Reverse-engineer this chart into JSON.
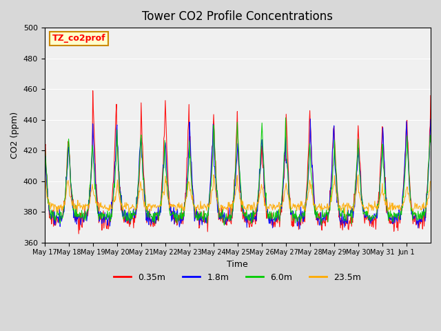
{
  "title": "Tower CO2 Profile Concentrations",
  "xlabel": "Time",
  "ylabel": "CO2 (ppm)",
  "label_text": "TZ_co2prof",
  "ylim": [
    360,
    500
  ],
  "series_labels": [
    "0.35m",
    "1.8m",
    "6.0m",
    "23.5m"
  ],
  "series_colors": [
    "#ff0000",
    "#0000ff",
    "#00cc00",
    "#ffaa00"
  ],
  "x_tick_labels": [
    "May 17",
    "May 18",
    "May 19",
    "May 20",
    "May 21",
    "May 22",
    "May 23",
    "May 24",
    "May 25",
    "May 26",
    "May 27",
    "May 28",
    "May 29",
    "May 30",
    "May 31",
    "Jun 1"
  ],
  "fig_facecolor": "#d8d8d8",
  "plot_bg_color": "#f0f0f0",
  "n_days": 16,
  "pts_per_day": 48,
  "amps": [
    68,
    62,
    52,
    18
  ],
  "bases": [
    375,
    376,
    377,
    382
  ],
  "noises": [
    3,
    2.5,
    2,
    1.5
  ]
}
